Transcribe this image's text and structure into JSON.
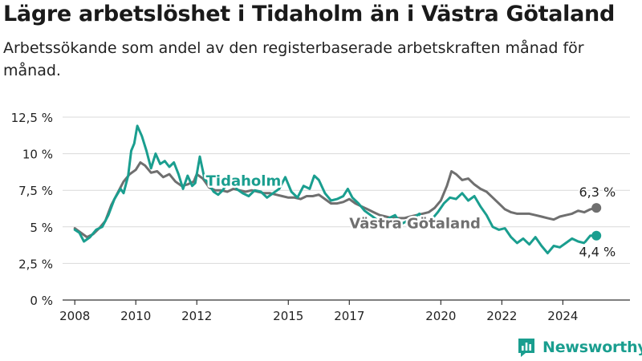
{
  "title": "Lägre arbetslöshet i Tidaholm än i Västra Götaland",
  "subtitle": "Arbetssökande som andel av den registerbaserade arbetskraften månad för månad.",
  "brand": {
    "name": "Newsworthy",
    "color": "#1a9e8f"
  },
  "chart_data": {
    "type": "line",
    "ylim": [
      0,
      12.5
    ],
    "y_ticks": [
      "0 %",
      "2,5 %",
      "5 %",
      "7,5 %",
      "10 %",
      "12,5 %"
    ],
    "y_tick_values": [
      0,
      2.5,
      5,
      7.5,
      10,
      12.5
    ],
    "x_ticks": [
      "2008",
      "2010",
      "2012",
      "2015",
      "2017",
      "2020",
      "2022",
      "2024"
    ],
    "x_tick_values": [
      2008,
      2010,
      2012,
      2015,
      2017,
      2020,
      2022,
      2024
    ],
    "xlim": [
      2007.6,
      2026.2
    ],
    "grid": true,
    "series": [
      {
        "name": "Västra Götaland",
        "color": "#6f6f6f",
        "end_label": "6,3 %",
        "points": [
          [
            2008.0,
            4.9
          ],
          [
            2008.2,
            4.6
          ],
          [
            2008.4,
            4.3
          ],
          [
            2008.6,
            4.5
          ],
          [
            2008.8,
            4.9
          ],
          [
            2009.0,
            5.4
          ],
          [
            2009.2,
            6.5
          ],
          [
            2009.4,
            7.3
          ],
          [
            2009.6,
            8.1
          ],
          [
            2009.8,
            8.6
          ],
          [
            2010.0,
            8.9
          ],
          [
            2010.15,
            9.4
          ],
          [
            2010.3,
            9.2
          ],
          [
            2010.5,
            8.7
          ],
          [
            2010.7,
            8.8
          ],
          [
            2010.9,
            8.4
          ],
          [
            2011.1,
            8.6
          ],
          [
            2011.3,
            8.1
          ],
          [
            2011.5,
            7.8
          ],
          [
            2011.7,
            7.9
          ],
          [
            2011.9,
            8.1
          ],
          [
            2012.0,
            8.6
          ],
          [
            2012.2,
            8.3
          ],
          [
            2012.4,
            7.7
          ],
          [
            2012.6,
            7.5
          ],
          [
            2012.8,
            7.5
          ],
          [
            2013.0,
            7.4
          ],
          [
            2013.2,
            7.6
          ],
          [
            2013.4,
            7.5
          ],
          [
            2013.6,
            7.4
          ],
          [
            2013.8,
            7.5
          ],
          [
            2014.0,
            7.4
          ],
          [
            2014.2,
            7.3
          ],
          [
            2014.4,
            7.3
          ],
          [
            2014.6,
            7.2
          ],
          [
            2014.8,
            7.1
          ],
          [
            2015.0,
            7.0
          ],
          [
            2015.2,
            7.0
          ],
          [
            2015.4,
            6.9
          ],
          [
            2015.6,
            7.1
          ],
          [
            2015.8,
            7.1
          ],
          [
            2016.0,
            7.2
          ],
          [
            2016.2,
            6.9
          ],
          [
            2016.4,
            6.6
          ],
          [
            2016.6,
            6.6
          ],
          [
            2016.8,
            6.7
          ],
          [
            2017.0,
            6.9
          ],
          [
            2017.2,
            6.6
          ],
          [
            2017.4,
            6.4
          ],
          [
            2017.6,
            6.2
          ],
          [
            2017.8,
            6.0
          ],
          [
            2018.0,
            5.8
          ],
          [
            2018.2,
            5.7
          ],
          [
            2018.4,
            5.6
          ],
          [
            2018.6,
            5.6
          ],
          [
            2018.8,
            5.6
          ],
          [
            2019.0,
            5.7
          ],
          [
            2019.2,
            5.8
          ],
          [
            2019.4,
            5.9
          ],
          [
            2019.6,
            6.0
          ],
          [
            2019.8,
            6.3
          ],
          [
            2020.0,
            6.8
          ],
          [
            2020.2,
            7.8
          ],
          [
            2020.35,
            8.8
          ],
          [
            2020.5,
            8.6
          ],
          [
            2020.7,
            8.2
          ],
          [
            2020.9,
            8.3
          ],
          [
            2021.1,
            7.9
          ],
          [
            2021.3,
            7.6
          ],
          [
            2021.5,
            7.4
          ],
          [
            2021.7,
            7.0
          ],
          [
            2021.9,
            6.6
          ],
          [
            2022.1,
            6.2
          ],
          [
            2022.3,
            6.0
          ],
          [
            2022.5,
            5.9
          ],
          [
            2022.7,
            5.9
          ],
          [
            2022.9,
            5.9
          ],
          [
            2023.1,
            5.8
          ],
          [
            2023.3,
            5.7
          ],
          [
            2023.5,
            5.6
          ],
          [
            2023.7,
            5.5
          ],
          [
            2023.9,
            5.7
          ],
          [
            2024.1,
            5.8
          ],
          [
            2024.3,
            5.9
          ],
          [
            2024.5,
            6.1
          ],
          [
            2024.7,
            6.0
          ],
          [
            2024.9,
            6.2
          ],
          [
            2025.1,
            6.3
          ]
        ]
      },
      {
        "name": "Tidaholm",
        "color": "#1a9e8f",
        "end_label": "4,4 %",
        "points": [
          [
            2008.0,
            4.8
          ],
          [
            2008.15,
            4.6
          ],
          [
            2008.3,
            4.0
          ],
          [
            2008.5,
            4.3
          ],
          [
            2008.7,
            4.8
          ],
          [
            2008.9,
            5.0
          ],
          [
            2009.1,
            5.8
          ],
          [
            2009.3,
            6.9
          ],
          [
            2009.5,
            7.6
          ],
          [
            2009.6,
            7.3
          ],
          [
            2009.75,
            8.5
          ],
          [
            2009.85,
            10.2
          ],
          [
            2009.95,
            10.7
          ],
          [
            2010.05,
            11.9
          ],
          [
            2010.2,
            11.2
          ],
          [
            2010.35,
            10.2
          ],
          [
            2010.5,
            9.0
          ],
          [
            2010.65,
            10.0
          ],
          [
            2010.8,
            9.3
          ],
          [
            2010.95,
            9.5
          ],
          [
            2011.1,
            9.1
          ],
          [
            2011.25,
            9.4
          ],
          [
            2011.4,
            8.6
          ],
          [
            2011.55,
            7.6
          ],
          [
            2011.7,
            8.5
          ],
          [
            2011.85,
            7.8
          ],
          [
            2011.95,
            8.0
          ],
          [
            2012.1,
            9.8
          ],
          [
            2012.25,
            8.3
          ],
          [
            2012.4,
            7.9
          ],
          [
            2012.55,
            7.4
          ],
          [
            2012.7,
            7.2
          ],
          [
            2012.85,
            7.5
          ],
          [
            2013.0,
            8.0
          ],
          [
            2013.15,
            8.2
          ],
          [
            2013.3,
            7.6
          ],
          [
            2013.5,
            7.3
          ],
          [
            2013.7,
            7.1
          ],
          [
            2013.9,
            7.5
          ],
          [
            2014.1,
            7.4
          ],
          [
            2014.3,
            7.0
          ],
          [
            2014.5,
            7.3
          ],
          [
            2014.7,
            7.6
          ],
          [
            2014.9,
            8.4
          ],
          [
            2015.1,
            7.4
          ],
          [
            2015.3,
            7.0
          ],
          [
            2015.5,
            7.8
          ],
          [
            2015.7,
            7.6
          ],
          [
            2015.85,
            8.5
          ],
          [
            2016.0,
            8.2
          ],
          [
            2016.2,
            7.3
          ],
          [
            2016.4,
            6.8
          ],
          [
            2016.6,
            6.9
          ],
          [
            2016.8,
            7.1
          ],
          [
            2016.95,
            7.6
          ],
          [
            2017.1,
            7.0
          ],
          [
            2017.3,
            6.6
          ],
          [
            2017.5,
            6.1
          ],
          [
            2017.7,
            5.8
          ],
          [
            2017.9,
            5.5
          ],
          [
            2018.1,
            5.3
          ],
          [
            2018.3,
            5.6
          ],
          [
            2018.5,
            5.8
          ],
          [
            2018.7,
            5.2
          ],
          [
            2018.9,
            5.4
          ],
          [
            2019.1,
            5.6
          ],
          [
            2019.3,
            5.9
          ],
          [
            2019.5,
            5.0
          ],
          [
            2019.7,
            5.5
          ],
          [
            2019.9,
            6.0
          ],
          [
            2020.1,
            6.6
          ],
          [
            2020.3,
            7.0
          ],
          [
            2020.5,
            6.9
          ],
          [
            2020.7,
            7.3
          ],
          [
            2020.9,
            6.8
          ],
          [
            2021.1,
            7.1
          ],
          [
            2021.3,
            6.4
          ],
          [
            2021.5,
            5.8
          ],
          [
            2021.7,
            5.0
          ],
          [
            2021.9,
            4.8
          ],
          [
            2022.1,
            4.9
          ],
          [
            2022.3,
            4.3
          ],
          [
            2022.5,
            3.9
          ],
          [
            2022.7,
            4.2
          ],
          [
            2022.9,
            3.8
          ],
          [
            2023.1,
            4.3
          ],
          [
            2023.3,
            3.7
          ],
          [
            2023.5,
            3.2
          ],
          [
            2023.7,
            3.7
          ],
          [
            2023.9,
            3.6
          ],
          [
            2024.1,
            3.9
          ],
          [
            2024.3,
            4.2
          ],
          [
            2024.5,
            4.0
          ],
          [
            2024.7,
            3.9
          ],
          [
            2024.9,
            4.4
          ],
          [
            2025.1,
            4.4
          ]
        ]
      }
    ]
  }
}
